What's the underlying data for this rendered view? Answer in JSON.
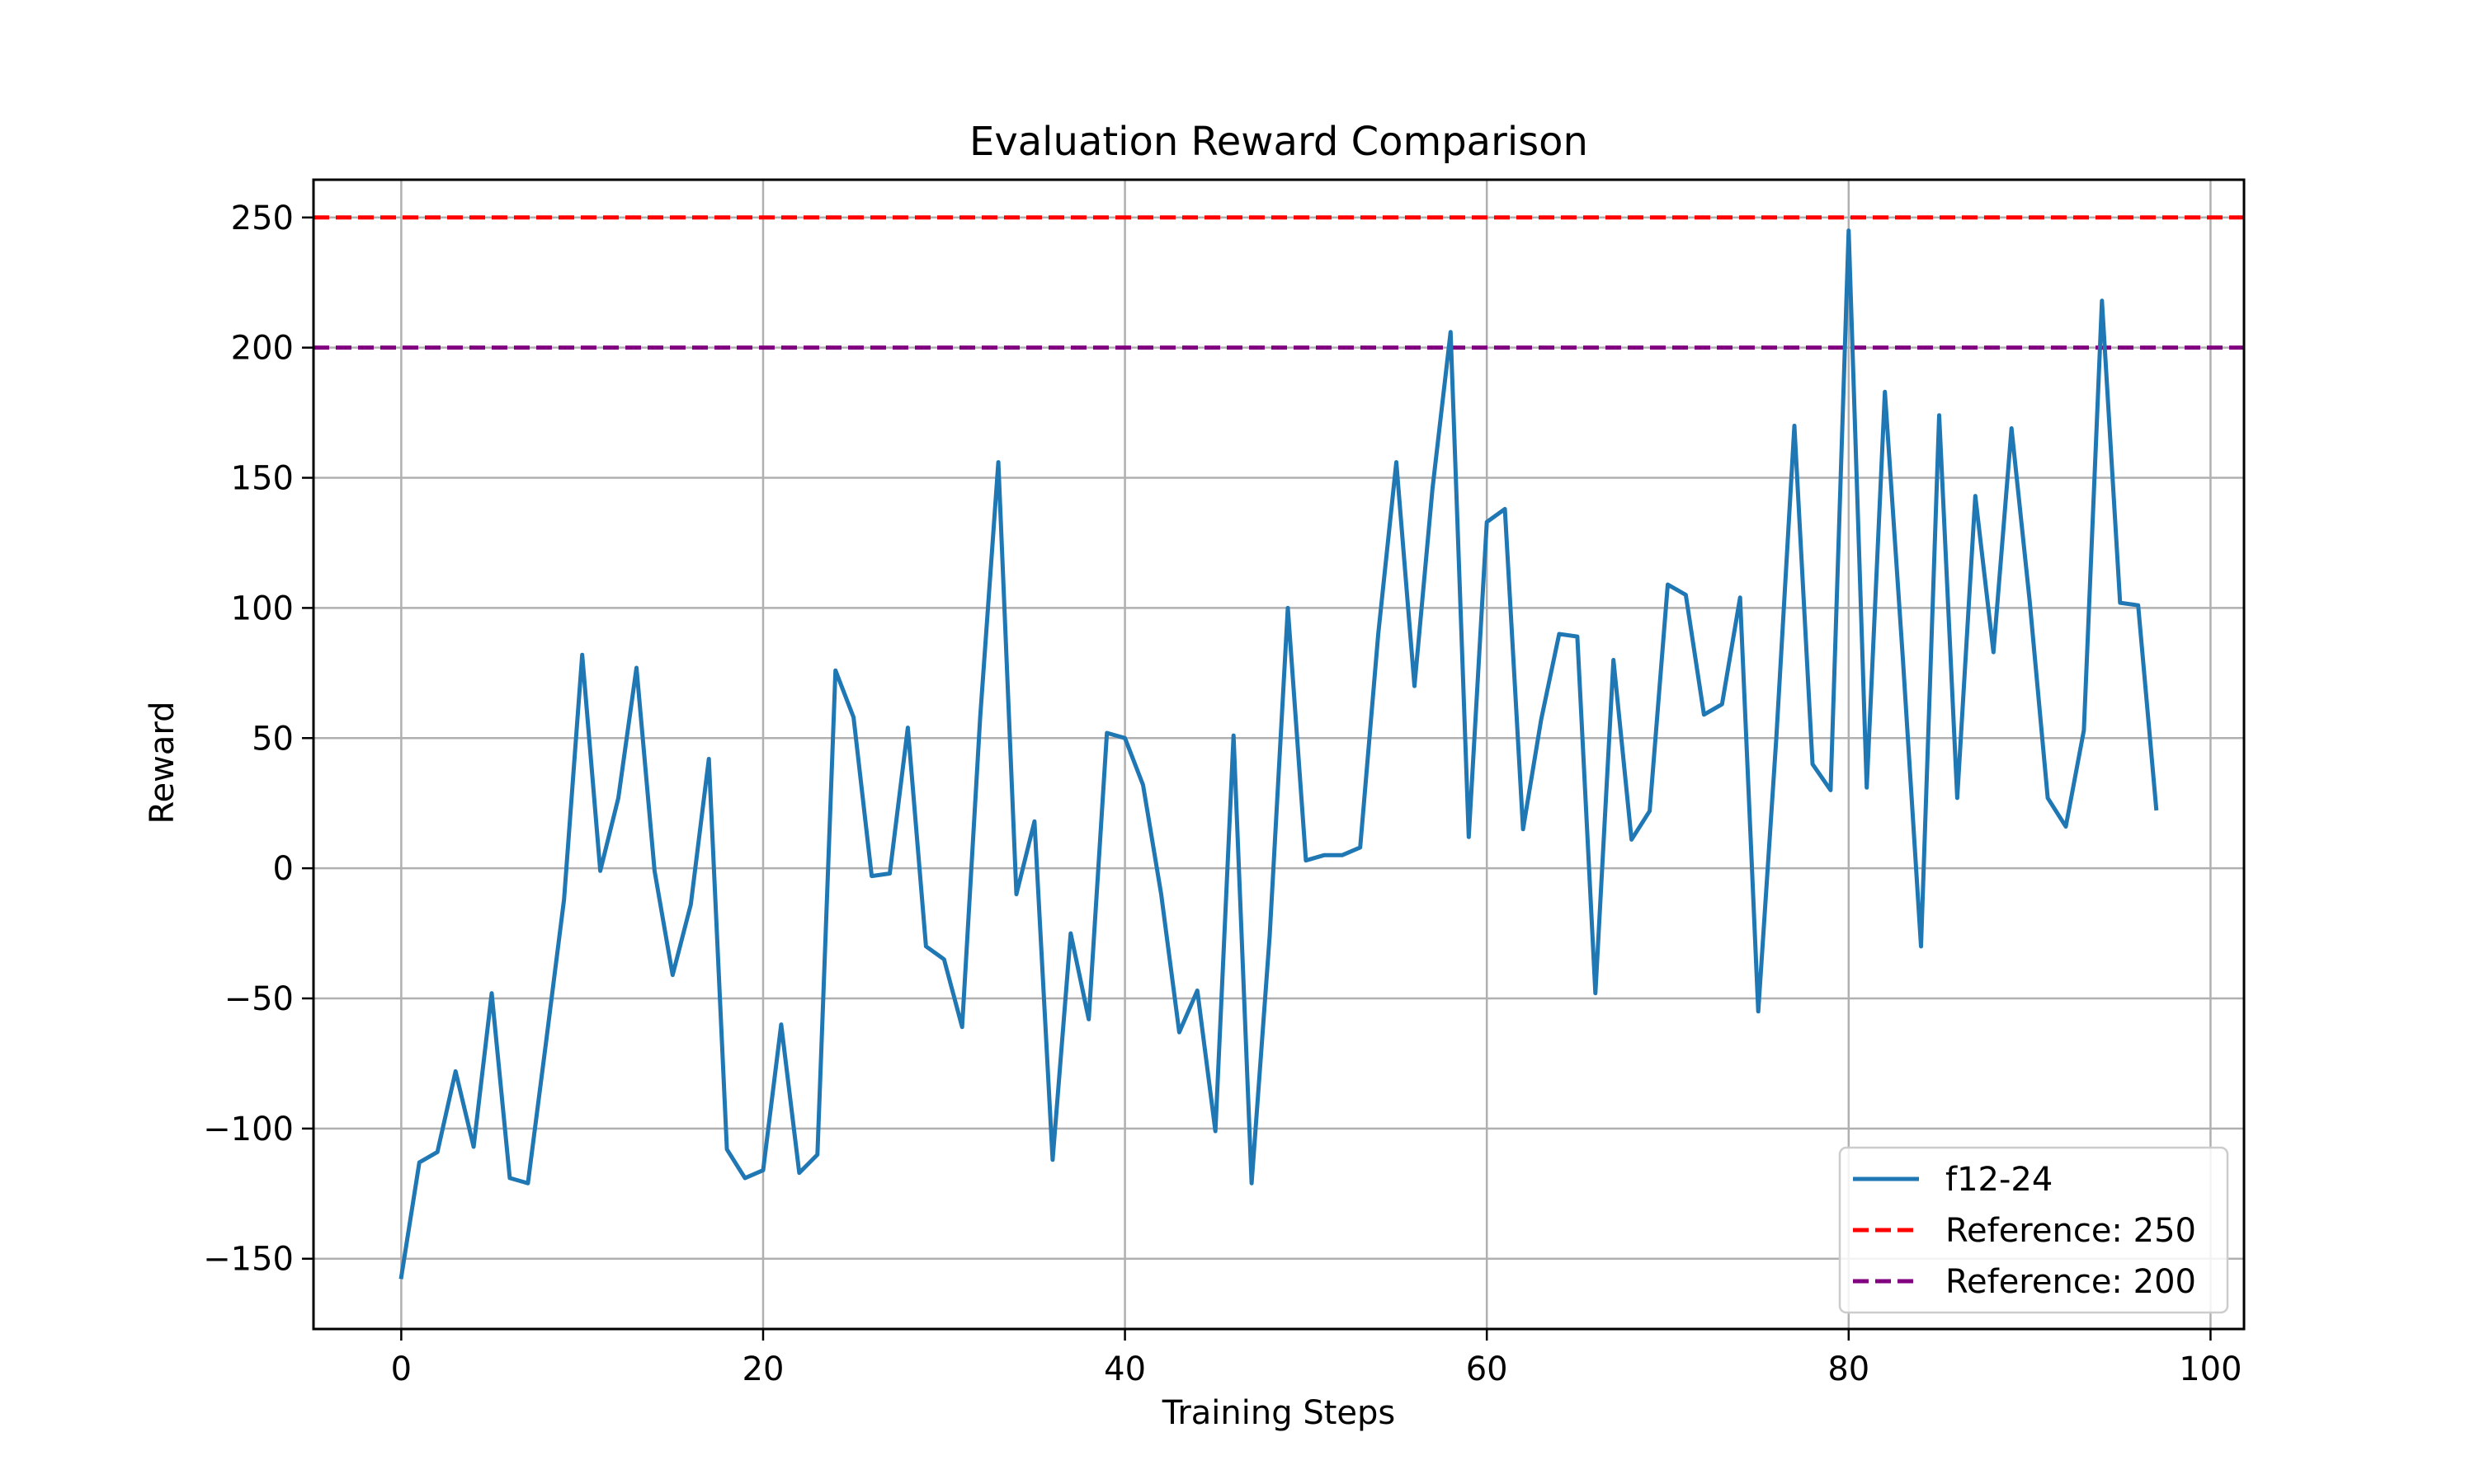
{
  "chart_data": {
    "type": "line",
    "title": "Evaluation Reward Comparison",
    "xlabel": "Training Steps",
    "ylabel": "Reward",
    "xlim": [
      -4.85,
      101.85
    ],
    "ylim": [
      -177.0,
      264.5
    ],
    "xticks": [
      0,
      20,
      40,
      60,
      80,
      100
    ],
    "yticks": [
      -150,
      -100,
      -50,
      0,
      50,
      100,
      150,
      200,
      250
    ],
    "ytick_labels": [
      "−150",
      "−100",
      "−50",
      "0",
      "50",
      "100",
      "150",
      "200",
      "250"
    ],
    "grid": true,
    "legend_position": "lower right",
    "series": [
      {
        "name": "f12-24",
        "color": "#1f77b4",
        "style": "solid",
        "x": [
          0,
          1,
          2,
          3,
          4,
          5,
          6,
          7,
          8,
          9,
          10,
          11,
          12,
          13,
          14,
          15,
          16,
          17,
          18,
          19,
          20,
          21,
          22,
          23,
          24,
          25,
          26,
          27,
          28,
          29,
          30,
          31,
          32,
          33,
          34,
          35,
          36,
          37,
          38,
          39,
          40,
          41,
          42,
          43,
          44,
          45,
          46,
          47,
          48,
          49,
          50,
          51,
          52,
          53,
          54,
          55,
          56,
          57,
          58,
          59,
          60,
          61,
          62,
          63,
          64,
          65,
          66,
          67,
          68,
          69,
          70,
          71,
          72,
          73,
          74,
          75,
          76,
          77,
          78,
          79,
          80,
          81,
          82,
          83,
          84,
          85,
          86,
          87,
          88,
          89,
          90,
          91,
          92,
          93,
          94,
          95,
          96,
          97
        ],
        "y": [
          -157,
          -113,
          -109,
          -78,
          -107,
          -48,
          -119,
          -121,
          -67,
          -12,
          82,
          -1,
          27,
          77,
          -1,
          -41,
          -14,
          42,
          -108,
          -119,
          -116,
          -60,
          -117,
          -110,
          76,
          58,
          -3,
          -2,
          54,
          -30,
          -35,
          -61,
          58,
          156,
          -10,
          18,
          -112,
          -25,
          -58,
          52,
          50,
          32,
          -10,
          -63,
          -47,
          -101,
          51,
          -121,
          -26,
          100,
          3,
          5,
          5,
          8,
          90,
          156,
          70,
          146,
          206,
          12,
          133,
          138,
          15,
          57,
          90,
          89,
          -48,
          80,
          11,
          22,
          109,
          105,
          59,
          63,
          104,
          -55,
          50,
          170,
          40,
          30,
          245,
          31,
          183,
          80,
          -30,
          174,
          27,
          143,
          83,
          169,
          103,
          27,
          16,
          53,
          218,
          102,
          101,
          23
        ]
      },
      {
        "name": "Reference: 250",
        "color": "#ff0000",
        "style": "dashed",
        "value": 250
      },
      {
        "name": "Reference: 200",
        "color": "#800080",
        "style": "dashed",
        "value": 200
      }
    ]
  }
}
